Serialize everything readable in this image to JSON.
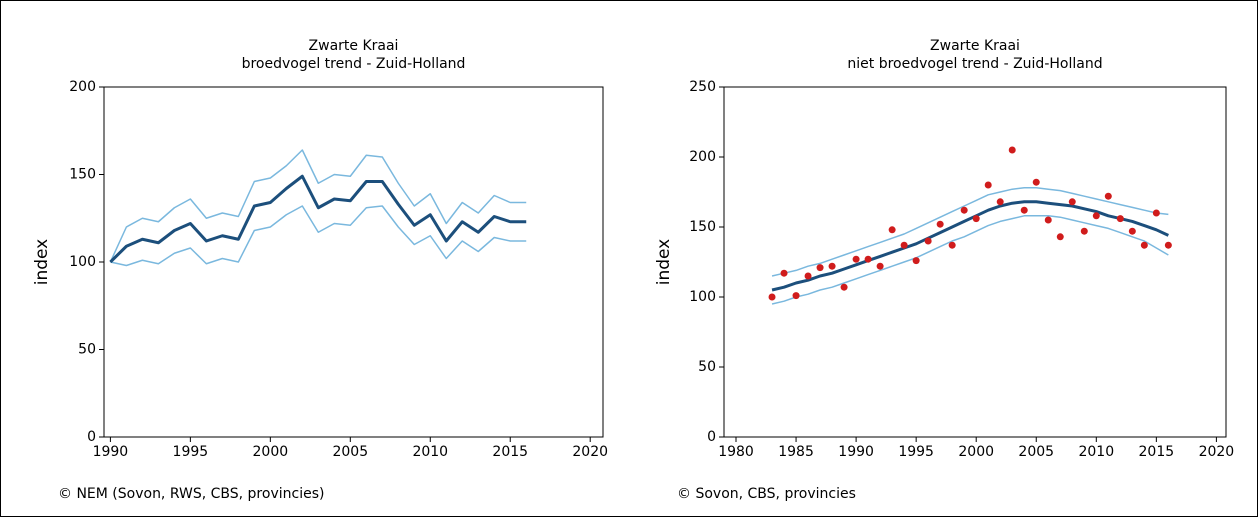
{
  "chart_data": [
    {
      "type": "line",
      "title": "Zwarte Kraai",
      "subtitle": "broedvogel trend - Zuid-Holland",
      "ylabel": "index",
      "source": "© NEM (Sovon, RWS, CBS, provincies)",
      "x": [
        1990,
        1991,
        1992,
        1993,
        1994,
        1995,
        1996,
        1997,
        1998,
        1999,
        2000,
        2001,
        2002,
        2003,
        2004,
        2005,
        2006,
        2007,
        2008,
        2009,
        2010,
        2011,
        2012,
        2013,
        2014,
        2015,
        2016
      ],
      "series": [
        {
          "style": "line",
          "color": "#7ab8de",
          "width": 1.5,
          "values": [
            100,
            120,
            125,
            123,
            131,
            136,
            125,
            128,
            126,
            146,
            148,
            155,
            164,
            145,
            150,
            149,
            161,
            160,
            145,
            132,
            139,
            122,
            134,
            128,
            138,
            134,
            134
          ]
        },
        {
          "style": "line",
          "color": "#7ab8de",
          "width": 1.5,
          "values": [
            100,
            98,
            101,
            99,
            105,
            108,
            99,
            102,
            100,
            118,
            120,
            127,
            132,
            117,
            122,
            121,
            131,
            132,
            120,
            110,
            115,
            102,
            112,
            106,
            114,
            112,
            112
          ]
        },
        {
          "style": "line",
          "color": "#1c4f7c",
          "width": 3,
          "values": [
            100,
            109,
            113,
            111,
            118,
            122,
            112,
            115,
            113,
            132,
            134,
            142,
            149,
            131,
            136,
            135,
            146,
            146,
            133,
            121,
            127,
            112,
            123,
            117,
            126,
            123,
            123
          ]
        }
      ],
      "xlim": [
        1989.6,
        2020.8
      ],
      "xticks": [
        1990,
        1995,
        2000,
        2005,
        2010,
        2015,
        2020
      ],
      "ylim": [
        0,
        200
      ],
      "yticks": [
        0,
        50,
        100,
        150,
        200
      ]
    },
    {
      "type": "line",
      "title": "Zwarte Kraai",
      "subtitle": "niet broedvogel trend - Zuid-Holland",
      "ylabel": "index",
      "source": "© Sovon, CBS, provincies",
      "x": [
        1983,
        1984,
        1985,
        1986,
        1987,
        1988,
        1989,
        1990,
        1991,
        1992,
        1993,
        1994,
        1995,
        1996,
        1997,
        1998,
        1999,
        2000,
        2001,
        2002,
        2003,
        2004,
        2005,
        2006,
        2007,
        2008,
        2009,
        2010,
        2011,
        2012,
        2013,
        2014,
        2015,
        2016
      ],
      "series": [
        {
          "style": "line",
          "color": "#7ab8de",
          "width": 1.5,
          "values": [
            115,
            117,
            119,
            122,
            124,
            127,
            130,
            133,
            136,
            139,
            142,
            145,
            149,
            153,
            157,
            161,
            165,
            169,
            173,
            175,
            177,
            178,
            178,
            177,
            176,
            174,
            172,
            170,
            168,
            166,
            164,
            162,
            160,
            159
          ]
        },
        {
          "style": "line",
          "color": "#7ab8de",
          "width": 1.5,
          "values": [
            95,
            97,
            100,
            102,
            105,
            107,
            110,
            113,
            116,
            119,
            122,
            125,
            128,
            132,
            136,
            140,
            143,
            147,
            151,
            154,
            156,
            158,
            158,
            158,
            157,
            155,
            153,
            151,
            149,
            146,
            143,
            140,
            135,
            130
          ]
        },
        {
          "style": "line",
          "color": "#1c4f7c",
          "width": 3,
          "values": [
            105,
            107,
            110,
            112,
            115,
            117,
            120,
            123,
            126,
            129,
            132,
            135,
            138,
            142,
            146,
            150,
            154,
            158,
            162,
            165,
            167,
            168,
            168,
            167,
            166,
            165,
            163,
            161,
            158,
            156,
            154,
            151,
            148,
            144
          ]
        },
        {
          "style": "points",
          "color": "#d01c1c",
          "width": 3.5,
          "values": [
            100,
            117,
            101,
            115,
            121,
            122,
            107,
            127,
            127,
            122,
            148,
            137,
            126,
            140,
            152,
            137,
            162,
            156,
            180,
            168,
            205,
            162,
            182,
            155,
            143,
            168,
            147,
            158,
            172,
            156,
            147,
            137,
            160,
            137
          ]
        }
      ],
      "xlim": [
        1979,
        2020.8
      ],
      "xticks": [
        1980,
        1985,
        1990,
        1995,
        2000,
        2005,
        2010,
        2015,
        2020
      ],
      "ylim": [
        0,
        250
      ],
      "yticks": [
        0,
        50,
        100,
        150,
        200,
        250
      ]
    }
  ]
}
